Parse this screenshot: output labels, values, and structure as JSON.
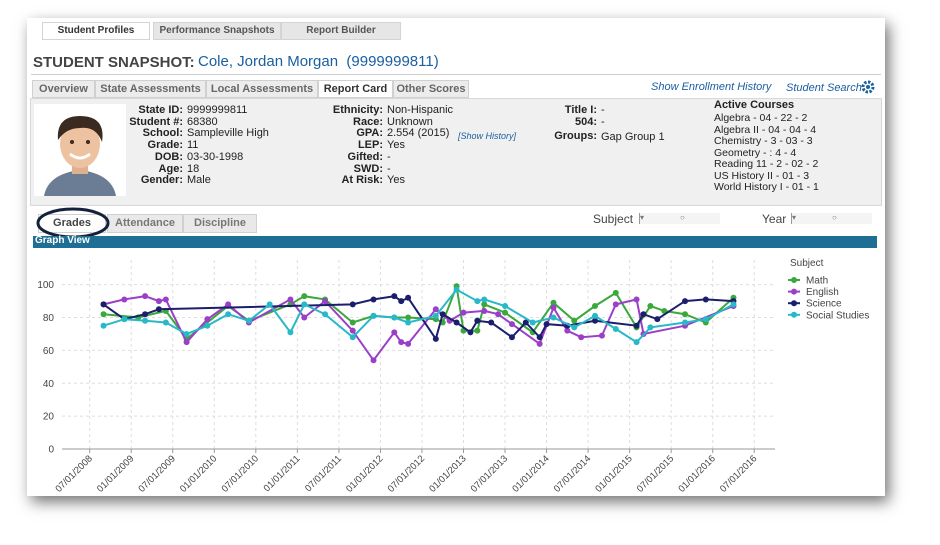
{
  "tabs": [
    "Student Profiles",
    "Performance Snapshots",
    "Report Builder"
  ],
  "title": "STUDENT SNAPSHOT:",
  "student_name": "Cole, Jordan Morgan  (9999999811)",
  "subtabs": [
    "Overview",
    "State Assessments",
    "Local Assessments",
    "Report Card",
    "Other Scores"
  ],
  "links": [
    "Show Enrollment History",
    "Student Search"
  ],
  "profile": {
    "column1": [
      {
        "label": "State ID:",
        "value": "9999999811"
      },
      {
        "label": "Student #:",
        "value": "68380"
      },
      {
        "label": "School:",
        "value": "Sampleville High"
      },
      {
        "label": "Grade:",
        "value": "11"
      },
      {
        "label": "DOB:",
        "value": "03-30-1998"
      },
      {
        "label": "Age:",
        "value": "18"
      },
      {
        "label": "Gender:",
        "value": "Male"
      }
    ],
    "column2": [
      {
        "label": "Ethnicity:",
        "value": "Non-Hispanic"
      },
      {
        "label": "Race:",
        "value": "Unknown"
      },
      {
        "label": "GPA:",
        "value": "2.554 (2015)"
      },
      {
        "label": "LEP:",
        "value": "Yes"
      },
      {
        "label": "Gifted:",
        "value": "-"
      },
      {
        "label": "SWD:",
        "value": "-"
      },
      {
        "label": "At Risk:",
        "value": "Yes"
      }
    ],
    "show_history": "[Show History]",
    "column3": [
      {
        "label": "Title I:",
        "value": "-"
      },
      {
        "label": "504:",
        "value": "-"
      },
      {
        "label": "Groups:",
        "value": "Gap Group 1"
      }
    ]
  },
  "active_courses": {
    "title": "Active Courses",
    "items": [
      "Algebra - 04 - 22 - 2",
      "Algebra II - 04 - 04 - 4",
      "Chemistry - 3 - 03 - 3",
      "Geometry - : 4 - 4",
      "Reading 11 - 2 - 02 - 2",
      "US History II - 01 - 3",
      "World History I - 01 - 1"
    ]
  },
  "grade_tabs": [
    "Grades",
    "Attendance",
    "Discipline"
  ],
  "filters": [
    "Subject",
    "Year"
  ],
  "panel_title": "Graph View",
  "chart_data": {
    "type": "line",
    "legend_title": "Subject",
    "grid": true,
    "xlim": [
      "03/01/2008",
      "10/01/2016"
    ],
    "xticks": [
      "07/01/2008",
      "01/01/2009",
      "07/01/2009",
      "01/01/2010",
      "07/01/2010",
      "01/01/2011",
      "07/01/2011",
      "01/01/2012",
      "07/01/2012",
      "01/01/2013",
      "07/01/2013",
      "01/01/2014",
      "07/01/2014",
      "01/01/2015",
      "07/01/2015",
      "01/01/2016",
      "07/01/2016"
    ],
    "ylim": [
      0,
      115
    ],
    "yticks": [
      0,
      20,
      40,
      60,
      80,
      100
    ],
    "series": [
      {
        "name": "Math",
        "color": "#3aa83a",
        "x": [
          "2008-09",
          "2009-02",
          "2009-06",
          "2009-09",
          "2010-03",
          "2010-06",
          "2010-12",
          "2011-02",
          "2011-05",
          "2011-09",
          "2011-12",
          "2012-03",
          "2012-05",
          "2012-09",
          "2012-10",
          "2012-12",
          "2013-01",
          "2013-03",
          "2013-04",
          "2013-07",
          "2013-11",
          "2014-02",
          "2014-05",
          "2014-08",
          "2014-11",
          "2015-02",
          "2015-04",
          "2015-06",
          "2015-09",
          "2015-12",
          "2016-04"
        ],
        "values": [
          82,
          80,
          84,
          67,
          87,
          78,
          88,
          93,
          91,
          77,
          81,
          80,
          80,
          79,
          77,
          99,
          72,
          72,
          88,
          83,
          71,
          89,
          78,
          87,
          95,
          74,
          87,
          84,
          82,
          77,
          92
        ]
      },
      {
        "name": "English",
        "color": "#9b3fc9",
        "x": [
          "2008-09",
          "2008-12",
          "2009-03",
          "2009-05",
          "2009-06",
          "2009-09",
          "2009-12",
          "2010-03",
          "2010-06",
          "2010-12",
          "2011-02",
          "2011-05",
          "2011-09",
          "2011-12",
          "2012-03",
          "2012-04",
          "2012-05",
          "2012-09",
          "2012-11",
          "2013-01",
          "2013-04",
          "2013-06",
          "2013-08",
          "2013-12",
          "2014-02",
          "2014-04",
          "2014-06",
          "2014-09",
          "2014-11",
          "2015-02",
          "2015-03",
          "2015-09",
          "2016-04"
        ],
        "values": [
          88,
          91,
          93,
          90,
          91,
          65,
          79,
          88,
          77,
          91,
          80,
          90,
          72,
          54,
          71,
          65,
          64,
          85,
          78,
          83,
          84,
          82,
          76,
          64,
          86,
          72,
          68,
          69,
          88,
          91,
          70,
          75,
          87
        ]
      },
      {
        "name": "Science",
        "color": "#1b1f6b",
        "x": [
          "2008-09",
          "2008-12",
          "2009-03",
          "2009-05",
          "2011-09",
          "2011-12",
          "2012-03",
          "2012-04",
          "2012-05",
          "2012-09",
          "2012-10",
          "2012-12",
          "2013-02",
          "2013-03",
          "2013-05",
          "2013-08",
          "2013-10",
          "2013-12",
          "2014-01",
          "2014-04",
          "2014-08",
          "2015-02",
          "2015-03",
          "2015-05",
          "2015-09",
          "2015-12",
          "2016-04"
        ],
        "values": [
          88,
          79,
          82,
          85,
          88,
          91,
          93,
          90,
          92,
          67,
          82,
          77,
          71,
          78,
          77,
          68,
          77,
          68,
          76,
          75,
          78,
          75,
          82,
          79,
          90,
          91,
          90
        ]
      },
      {
        "name": "Social Studies",
        "color": "#28b8c8",
        "x": [
          "2008-09",
          "2008-12",
          "2009-03",
          "2009-06",
          "2009-09",
          "2009-12",
          "2010-03",
          "2010-06",
          "2010-09",
          "2010-12",
          "2011-02",
          "2011-05",
          "2011-09",
          "2011-12",
          "2012-03",
          "2012-05",
          "2012-09",
          "2012-12",
          "2013-03",
          "2013-04",
          "2013-07",
          "2013-11",
          "2014-02",
          "2014-05",
          "2014-08",
          "2014-11",
          "2015-02",
          "2015-04",
          "2015-09",
          "2015-12",
          "2016-04"
        ],
        "values": [
          75,
          79,
          78,
          77,
          70,
          75,
          82,
          78,
          88,
          71,
          88,
          82,
          68,
          81,
          80,
          77,
          81,
          97,
          90,
          91,
          87,
          77,
          80,
          74,
          81,
          73,
          65,
          74,
          77,
          79,
          88
        ]
      }
    ]
  }
}
